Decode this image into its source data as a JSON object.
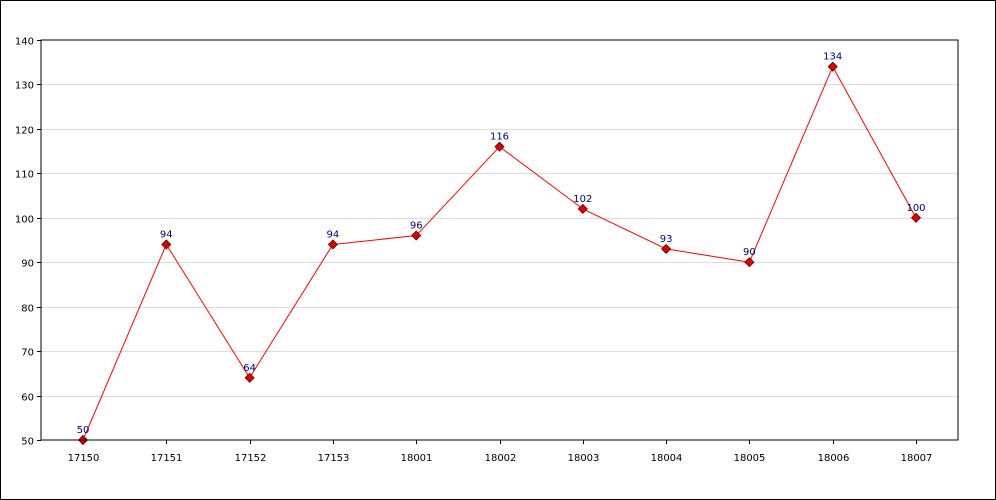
{
  "chart_data": {
    "type": "line",
    "title": "",
    "xlabel": "",
    "ylabel": "",
    "categories": [
      "17150",
      "17151",
      "17152",
      "17153",
      "18001",
      "18002",
      "18003",
      "18004",
      "18005",
      "18006",
      "18007"
    ],
    "series": [
      {
        "values": [
          50,
          94,
          64,
          94,
          96,
          116,
          102,
          93,
          90,
          134,
          100
        ],
        "line_color": "#ff0000",
        "marker_color": "#e00000",
        "marker_shape": "diamond"
      }
    ],
    "ylim": [
      50,
      140
    ],
    "yticks": [
      50,
      60,
      70,
      80,
      90,
      100,
      110,
      120,
      130,
      140
    ],
    "grid": true,
    "grid_color": "#dcdcdc",
    "data_label_color": "#000080",
    "show_data_labels": true,
    "legend": "none"
  }
}
